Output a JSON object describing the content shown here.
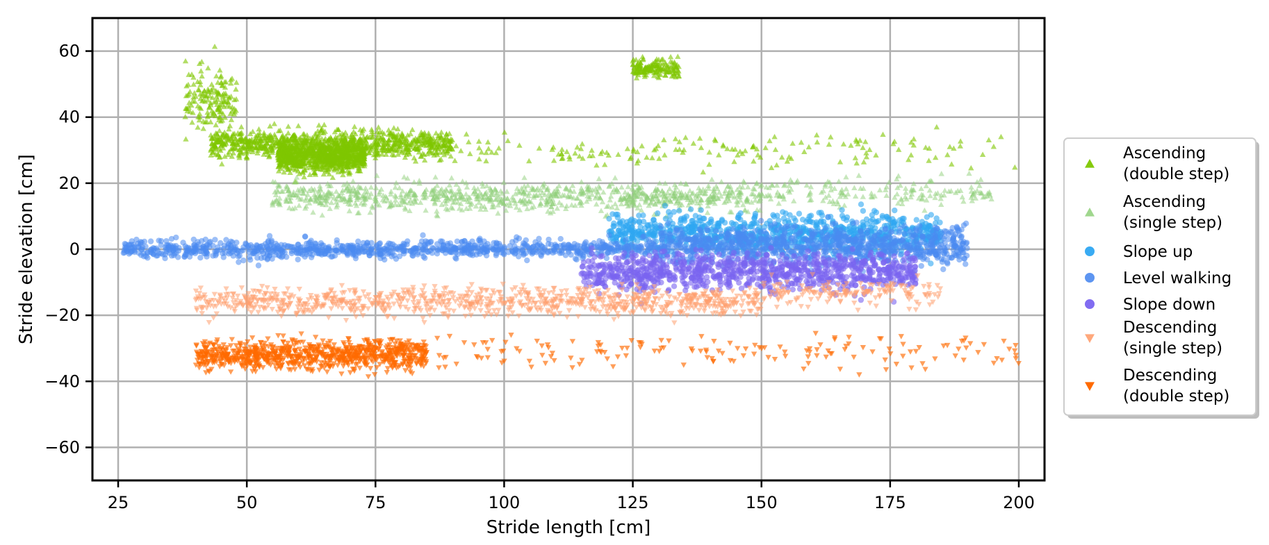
{
  "chart_data": {
    "type": "scatter",
    "title": "",
    "xlabel": "Stride length [cm]",
    "ylabel": "Stride elevation [cm]",
    "xlim": [
      20,
      205
    ],
    "ylim": [
      -70,
      70
    ],
    "xticks": [
      25,
      50,
      75,
      100,
      125,
      150,
      175,
      200
    ],
    "yticks": [
      -60,
      -40,
      -20,
      0,
      20,
      40,
      60
    ],
    "xtick_labels": [
      "25",
      "50",
      "75",
      "100",
      "125",
      "150",
      "175",
      "200"
    ],
    "ytick_labels": [
      "−60",
      "−40",
      "−20",
      "0",
      "20",
      "40",
      "60"
    ],
    "grid": true,
    "legend_position": "right",
    "series": [
      {
        "name_lines": [
          "Ascending",
          "(double step)"
        ],
        "marker": "triangle-up",
        "color": "#7ec700",
        "opacity": 0.6,
        "clusters": [
          {
            "x_range": [
              43,
              90
            ],
            "y_center": 32,
            "y_spread": 3,
            "density": "dense"
          },
          {
            "x_range": [
              56,
              73
            ],
            "y_center": 28,
            "y_spread": 3,
            "density": "dense"
          },
          {
            "x_range": [
              90,
              200
            ],
            "y_center": 30,
            "y_spread": 3.5,
            "density": "sparse"
          },
          {
            "x_range": [
              38,
              48
            ],
            "y_center": 45,
            "y_spread": 7,
            "density": "sparse"
          },
          {
            "x_range": [
              125,
              134
            ],
            "y_center": 55,
            "y_spread": 2,
            "density": "sparse"
          }
        ]
      },
      {
        "name_lines": [
          "Ascending",
          "(single step)"
        ],
        "marker": "triangle-up",
        "color": "#8fd07a",
        "opacity": 0.5,
        "clusters": [
          {
            "x_range": [
              55,
              150
            ],
            "y_center": 16,
            "y_spread": 3,
            "density": "dense"
          },
          {
            "x_range": [
              150,
              195
            ],
            "y_center": 17,
            "y_spread": 3,
            "density": "sparse"
          }
        ]
      },
      {
        "name_lines": [
          "Slope up"
        ],
        "marker": "circle",
        "color": "#2ea6f2",
        "opacity": 0.6,
        "clusters": [
          {
            "x_range": [
              120,
              185
            ],
            "y_center": 5,
            "y_spread": 4,
            "density": "dense"
          }
        ]
      },
      {
        "name_lines": [
          "Level walking"
        ],
        "marker": "circle",
        "color": "#4b8af0",
        "opacity": 0.55,
        "clusters": [
          {
            "x_range": [
              26,
              130
            ],
            "y_center": 0,
            "y_spread": 2,
            "density": "dense"
          },
          {
            "x_range": [
              130,
              190
            ],
            "y_center": 1,
            "y_spread": 4,
            "density": "dense"
          }
        ]
      },
      {
        "name_lines": [
          "Slope down"
        ],
        "marker": "circle",
        "color": "#7a64f0",
        "opacity": 0.6,
        "clusters": [
          {
            "x_range": [
              115,
              180
            ],
            "y_center": -7,
            "y_spread": 4,
            "density": "dense"
          }
        ]
      },
      {
        "name_lines": [
          "Descending",
          "(single step)"
        ],
        "marker": "triangle-down",
        "color": "#ff9e6e",
        "opacity": 0.55,
        "clusters": [
          {
            "x_range": [
              40,
              150
            ],
            "y_center": -16,
            "y_spread": 3,
            "density": "dense"
          },
          {
            "x_range": [
              150,
              185
            ],
            "y_center": -13,
            "y_spread": 3,
            "density": "sparse"
          }
        ]
      },
      {
        "name_lines": [
          "Descending",
          "(double step)"
        ],
        "marker": "triangle-down",
        "color": "#ff6a00",
        "opacity": 0.65,
        "clusters": [
          {
            "x_range": [
              40,
              85
            ],
            "y_center": -32,
            "y_spread": 3,
            "density": "dense"
          },
          {
            "x_range": [
              85,
              200
            ],
            "y_center": -31,
            "y_spread": 3.5,
            "density": "sparse"
          }
        ]
      }
    ]
  }
}
